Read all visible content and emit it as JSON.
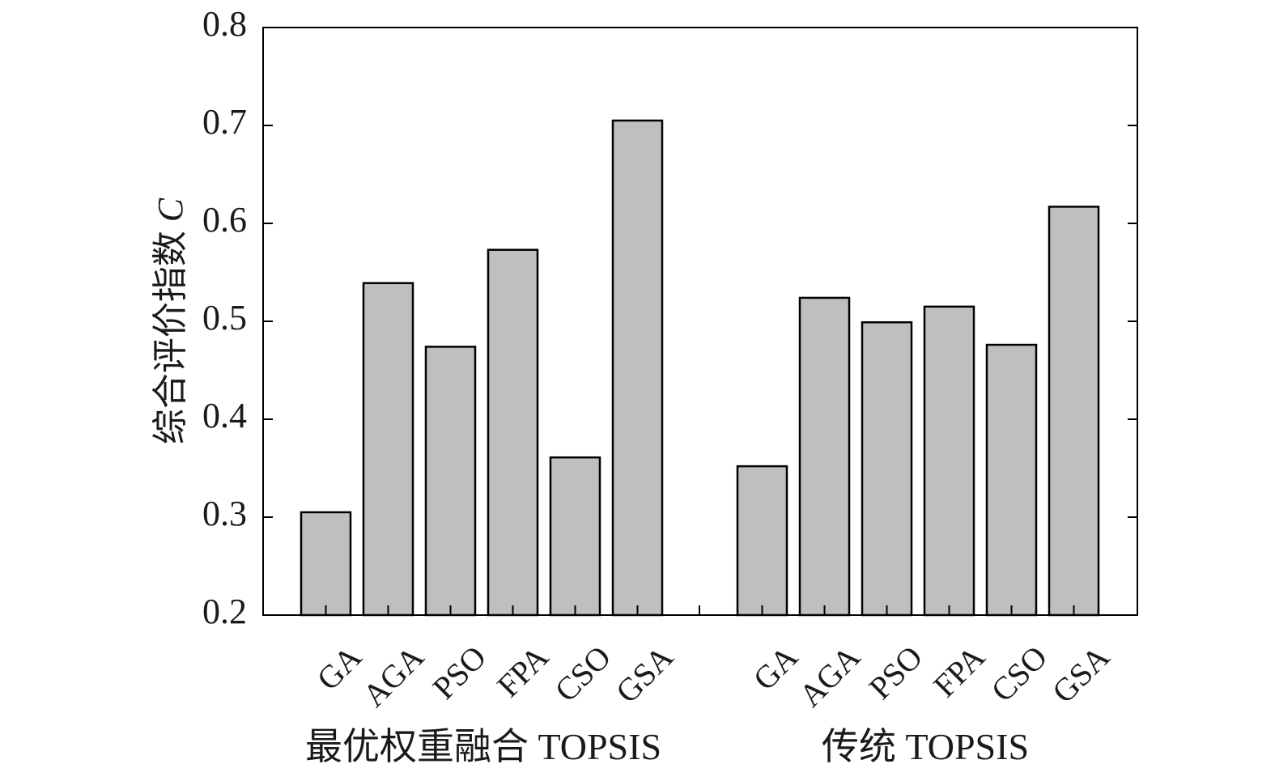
{
  "chart_data": {
    "type": "bar",
    "ylabel": "综合评价指数 C",
    "ylabel_text": "综合评价指数",
    "ylabel_var": "C",
    "ylim": [
      0.2,
      0.8
    ],
    "yticks": [
      "0.2",
      "0.3",
      "0.4",
      "0.5",
      "0.6",
      "0.7",
      "0.8"
    ],
    "grid": false,
    "bar_color": "#bfbfbf",
    "edge_color": "#000000",
    "groups": [
      {
        "name": "最优权重融合 TOPSIS",
        "categories": [
          "GA",
          "AGA",
          "PSO",
          "FPA",
          "CSO",
          "GSA"
        ],
        "values": [
          0.305,
          0.539,
          0.474,
          0.573,
          0.361,
          0.705
        ]
      },
      {
        "name": "传统 TOPSIS",
        "categories": [
          "GA",
          "AGA",
          "PSO",
          "FPA",
          "CSO",
          "GSA"
        ],
        "values": [
          0.352,
          0.524,
          0.499,
          0.515,
          0.476,
          0.617
        ]
      }
    ]
  }
}
